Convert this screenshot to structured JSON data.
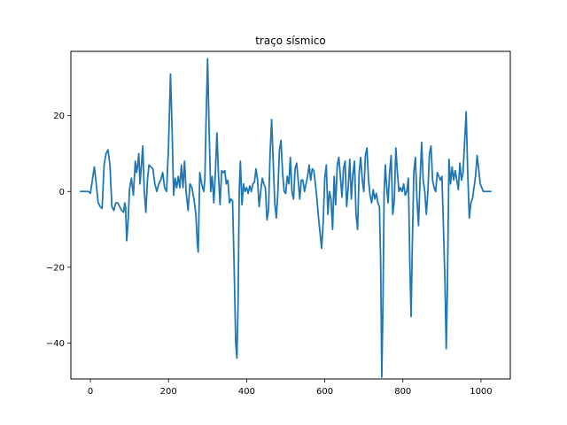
{
  "chart_data": {
    "type": "line",
    "title": "traço sísmico",
    "xlabel": "",
    "ylabel": "",
    "xlim": [
      -50,
      1075
    ],
    "ylim": [
      -49.5,
      37.0
    ],
    "xticks": [
      0,
      200,
      400,
      600,
      800,
      1000
    ],
    "xtick_labels": [
      "0",
      "200",
      "400",
      "600",
      "800",
      "1000"
    ],
    "yticks": [
      20,
      0,
      -20,
      -40
    ],
    "ytick_labels": [
      "20",
      "0",
      "−20",
      "−40"
    ],
    "grid": false,
    "legend": "none",
    "series": [
      {
        "color": "#1f77b4",
        "points": [
          [
            -25,
            0
          ],
          [
            -5,
            0
          ],
          [
            0,
            -0.5
          ],
          [
            5,
            3
          ],
          [
            10,
            6.5
          ],
          [
            15,
            2
          ],
          [
            20,
            -3
          ],
          [
            25,
            -4
          ],
          [
            30,
            -4.5
          ],
          [
            35,
            7
          ],
          [
            40,
            10
          ],
          [
            45,
            11
          ],
          [
            50,
            7
          ],
          [
            55,
            -4
          ],
          [
            60,
            -5
          ],
          [
            65,
            -3
          ],
          [
            70,
            -3
          ],
          [
            75,
            -4
          ],
          [
            80,
            -5
          ],
          [
            85,
            -5.5
          ],
          [
            88,
            -3
          ],
          [
            90,
            -4
          ],
          [
            93,
            -13
          ],
          [
            97,
            -7
          ],
          [
            100,
            0.5
          ],
          [
            105,
            3.5
          ],
          [
            110,
            -1
          ],
          [
            115,
            8
          ],
          [
            118,
            5
          ],
          [
            120,
            6
          ],
          [
            124,
            10
          ],
          [
            127,
            2
          ],
          [
            130,
            6
          ],
          [
            134,
            12
          ],
          [
            138,
            0
          ],
          [
            142,
            -5.5
          ],
          [
            146,
            3
          ],
          [
            150,
            7
          ],
          [
            155,
            6.5
          ],
          [
            160,
            6
          ],
          [
            165,
            2
          ],
          [
            170,
            0
          ],
          [
            175,
            2
          ],
          [
            180,
            3
          ],
          [
            185,
            5
          ],
          [
            190,
            1
          ],
          [
            195,
            0
          ],
          [
            200,
            12
          ],
          [
            205,
            31
          ],
          [
            209,
            17
          ],
          [
            213,
            -1
          ],
          [
            217,
            3.5
          ],
          [
            221,
            1
          ],
          [
            225,
            4
          ],
          [
            229,
            1
          ],
          [
            233,
            7
          ],
          [
            237,
            1
          ],
          [
            241,
            8
          ],
          [
            245,
            0
          ],
          [
            250,
            -5
          ],
          [
            255,
            2
          ],
          [
            260,
            1
          ],
          [
            265,
            -2
          ],
          [
            270,
            -6
          ],
          [
            274,
            -14
          ],
          [
            276,
            -16
          ],
          [
            280,
            5
          ],
          [
            285,
            2
          ],
          [
            290,
            0
          ],
          [
            293,
            3
          ],
          [
            296,
            18
          ],
          [
            300,
            35
          ],
          [
            304,
            16
          ],
          [
            308,
            0
          ],
          [
            312,
            4
          ],
          [
            316,
            -3
          ],
          [
            320,
            5
          ],
          [
            324,
            15.5
          ],
          [
            328,
            4
          ],
          [
            332,
            -3.5
          ],
          [
            336,
            5.5
          ],
          [
            340,
            5
          ],
          [
            344,
            5.5
          ],
          [
            348,
            2
          ],
          [
            352,
            3
          ],
          [
            356,
            -3
          ],
          [
            360,
            -2
          ],
          [
            364,
            -2.5
          ],
          [
            368,
            -20
          ],
          [
            372,
            -40
          ],
          [
            375,
            -44
          ],
          [
            378,
            -30
          ],
          [
            381,
            0
          ],
          [
            384,
            8
          ],
          [
            388,
            -3.5
          ],
          [
            392,
            2
          ],
          [
            396,
            0
          ],
          [
            400,
            1
          ],
          [
            404,
            -0.5
          ],
          [
            408,
            1.5
          ],
          [
            412,
            0
          ],
          [
            416,
            2
          ],
          [
            420,
            2.5
          ],
          [
            424,
            6
          ],
          [
            428,
            3
          ],
          [
            432,
            -4
          ],
          [
            436,
            0
          ],
          [
            440,
            3.5
          ],
          [
            444,
            2
          ],
          [
            448,
            1
          ],
          [
            452,
            -7.5
          ],
          [
            456,
            -5
          ],
          [
            460,
            10
          ],
          [
            464,
            19
          ],
          [
            468,
            8
          ],
          [
            472,
            -3
          ],
          [
            476,
            -7
          ],
          [
            480,
            0
          ],
          [
            484,
            11
          ],
          [
            488,
            13.5
          ],
          [
            492,
            5
          ],
          [
            496,
            0
          ],
          [
            500,
            -0.5
          ],
          [
            504,
            4
          ],
          [
            508,
            2
          ],
          [
            512,
            9
          ],
          [
            516,
            0
          ],
          [
            520,
            -2
          ],
          [
            524,
            6
          ],
          [
            528,
            7.5
          ],
          [
            532,
            3
          ],
          [
            536,
            -2
          ],
          [
            540,
            3
          ],
          [
            544,
            3
          ],
          [
            548,
            0
          ],
          [
            552,
            2
          ],
          [
            556,
            4
          ],
          [
            560,
            7
          ],
          [
            564,
            3
          ],
          [
            568,
            6
          ],
          [
            572,
            5.5
          ],
          [
            576,
            2
          ],
          [
            580,
            -2
          ],
          [
            584,
            -7
          ],
          [
            588,
            -11
          ],
          [
            592,
            -15
          ],
          [
            596,
            -8
          ],
          [
            600,
            3.5
          ],
          [
            604,
            7
          ],
          [
            608,
            -6
          ],
          [
            612,
            0
          ],
          [
            616,
            -2
          ],
          [
            620,
            -10
          ],
          [
            624,
            4
          ],
          [
            628,
            -3.5
          ],
          [
            632,
            7
          ],
          [
            636,
            9
          ],
          [
            640,
            4
          ],
          [
            644,
            -1.5
          ],
          [
            648,
            6
          ],
          [
            652,
            8
          ],
          [
            656,
            -4
          ],
          [
            660,
            1
          ],
          [
            664,
            8.5
          ],
          [
            668,
            -2
          ],
          [
            672,
            4.5
          ],
          [
            676,
            8
          ],
          [
            680,
            -6
          ],
          [
            684,
            -10
          ],
          [
            688,
            5
          ],
          [
            692,
            9
          ],
          [
            696,
            3
          ],
          [
            700,
            0
          ],
          [
            704,
            9.5
          ],
          [
            708,
            11.5
          ],
          [
            712,
            3
          ],
          [
            716,
            -1
          ],
          [
            720,
            -3
          ],
          [
            724,
            0.5
          ],
          [
            728,
            -2
          ],
          [
            732,
            -0.5
          ],
          [
            736,
            -3
          ],
          [
            740,
            -4
          ],
          [
            743,
            -18
          ],
          [
            746,
            -49
          ],
          [
            749,
            -30
          ],
          [
            752,
            0
          ],
          [
            755,
            7
          ],
          [
            758,
            2
          ],
          [
            762,
            -3
          ],
          [
            766,
            5
          ],
          [
            770,
            9.5
          ],
          [
            774,
            -6
          ],
          [
            778,
            -2.5
          ],
          [
            782,
            11.5
          ],
          [
            786,
            5
          ],
          [
            790,
            0
          ],
          [
            794,
            1
          ],
          [
            798,
            0
          ],
          [
            802,
            2
          ],
          [
            806,
            -1
          ],
          [
            810,
            0
          ],
          [
            814,
            3.5
          ],
          [
            818,
            -20
          ],
          [
            821,
            -33
          ],
          [
            824,
            -15
          ],
          [
            828,
            5
          ],
          [
            832,
            9
          ],
          [
            836,
            -2
          ],
          [
            840,
            -9
          ],
          [
            844,
            3
          ],
          [
            848,
            13
          ],
          [
            852,
            3
          ],
          [
            856,
            0
          ],
          [
            860,
            -6
          ],
          [
            864,
            0
          ],
          [
            868,
            10
          ],
          [
            872,
            12
          ],
          [
            876,
            3
          ],
          [
            880,
            1
          ],
          [
            884,
            0
          ],
          [
            888,
            5
          ],
          [
            892,
            4
          ],
          [
            896,
            3
          ],
          [
            900,
            4
          ],
          [
            904,
            -10
          ],
          [
            908,
            -25
          ],
          [
            911,
            -41.5
          ],
          [
            914,
            -25
          ],
          [
            918,
            8.5
          ],
          [
            922,
            2
          ],
          [
            926,
            6.5
          ],
          [
            930,
            3
          ],
          [
            934,
            5.5
          ],
          [
            938,
            3
          ],
          [
            942,
            0.5
          ],
          [
            946,
            7.5
          ],
          [
            950,
            3
          ],
          [
            954,
            5
          ],
          [
            958,
            13
          ],
          [
            962,
            21
          ],
          [
            966,
            5
          ],
          [
            970,
            -7
          ],
          [
            974,
            -3
          ],
          [
            978,
            -2
          ],
          [
            982,
            1
          ],
          [
            986,
            4
          ],
          [
            990,
            9.5
          ],
          [
            994,
            6
          ],
          [
            998,
            2
          ],
          [
            1002,
            1
          ],
          [
            1006,
            0
          ],
          [
            1010,
            0
          ],
          [
            1025,
            0
          ]
        ]
      }
    ]
  }
}
